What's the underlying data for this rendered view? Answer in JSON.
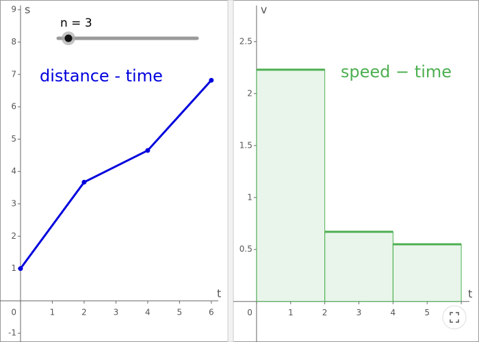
{
  "slider": {
    "label": "n = 3"
  },
  "chart_data": [
    {
      "type": "line",
      "annotation": "distance - time",
      "x_label": "t",
      "y_label": "s",
      "x": [
        0,
        2,
        4,
        6
      ],
      "values": [
        1,
        3.67,
        4.65,
        6.82
      ],
      "color": "#0000dd",
      "xlim": [
        -0.645,
        6.52
      ],
      "ylim": [
        -1.27,
        9.3
      ],
      "xticks": [
        0,
        1,
        2,
        3,
        4,
        5,
        6
      ],
      "yticks": [
        -1,
        1,
        2,
        3,
        4,
        5,
        6,
        7,
        8,
        9
      ]
    },
    {
      "type": "histogram",
      "annotation": "speed − time",
      "x_label": "t",
      "y_label": "v",
      "bins": [
        0,
        2,
        4,
        6
      ],
      "values": [
        2.23,
        0.67,
        0.55
      ],
      "color": "#4caf50",
      "xlim": [
        -0.68,
        6.52
      ],
      "ylim": [
        -0.39,
        2.9
      ],
      "xticks": [
        0,
        1,
        2,
        3,
        4,
        5,
        6
      ],
      "yticks": [
        0.5,
        1,
        1.5,
        2,
        2.5
      ]
    }
  ]
}
